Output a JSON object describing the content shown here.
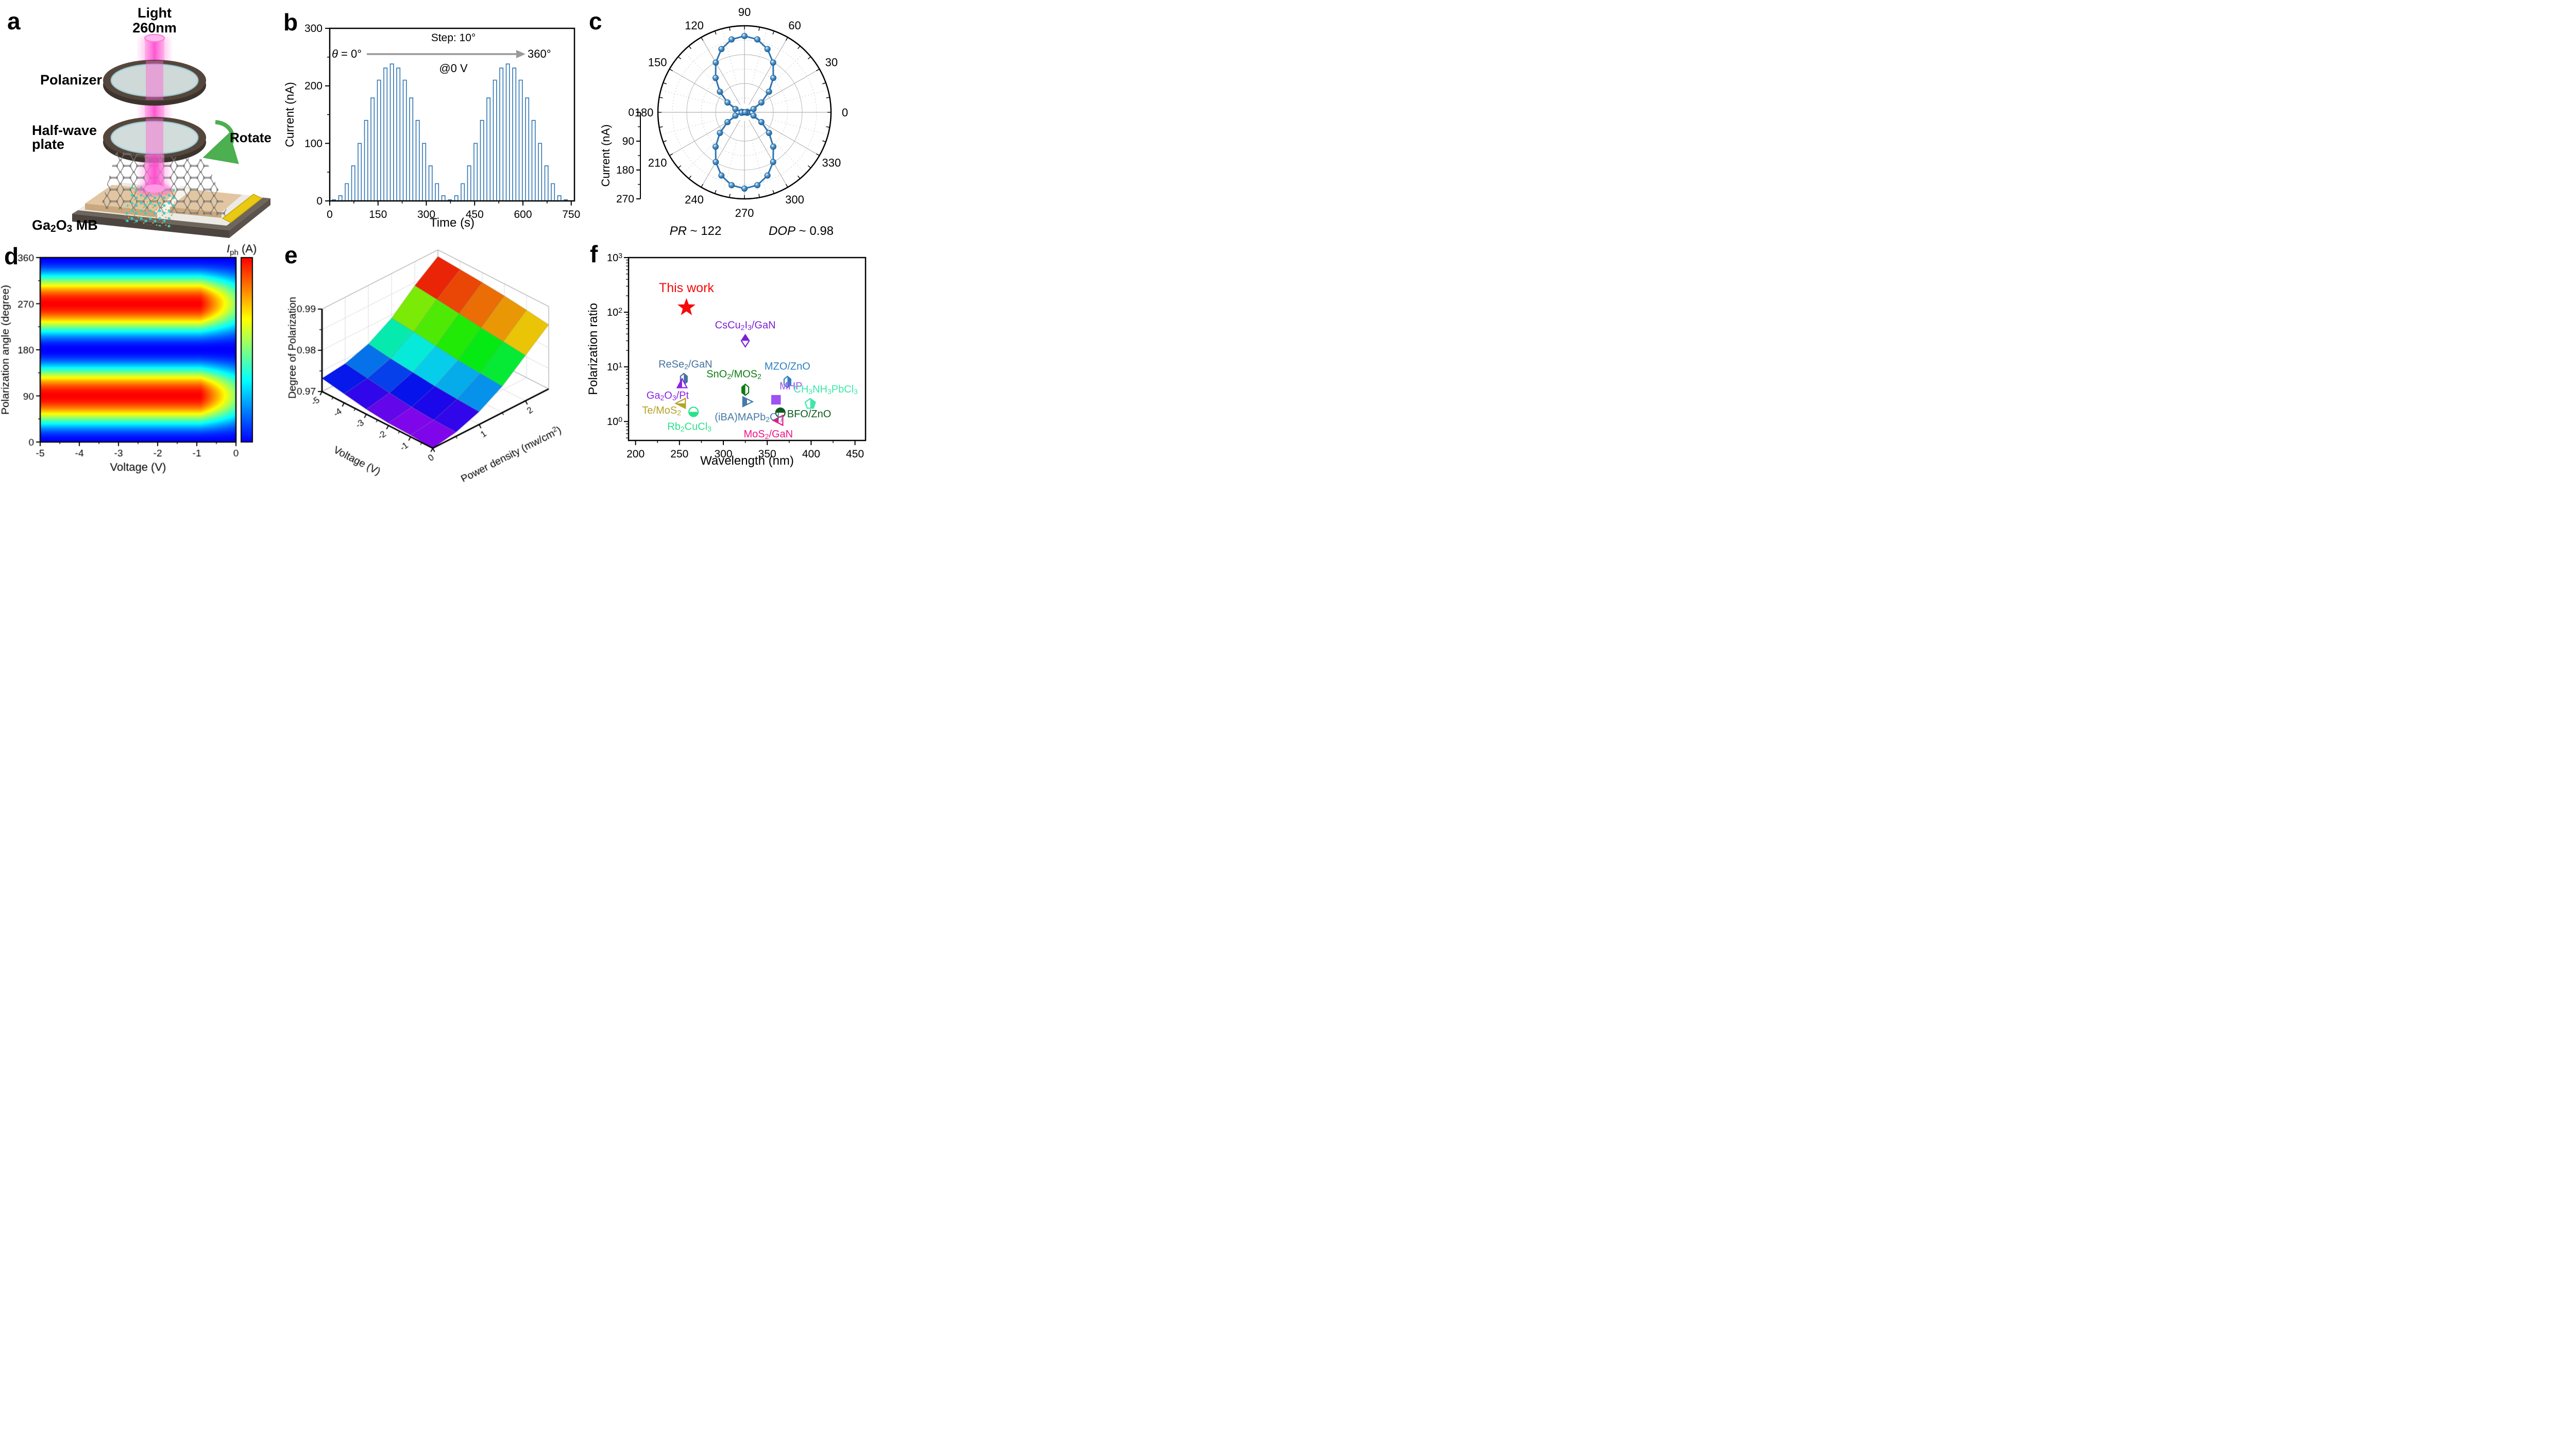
{
  "panel_a": {
    "label": "a",
    "light_label_line1": "Light",
    "light_label_line2": "260nm",
    "polarizer_label": "Polanizer",
    "halfwave_label_line1": "Half-wave",
    "halfwave_label_line2": "plate",
    "rotate_label": "Rotate",
    "device_label_segments": [
      [
        "Ga",
        0
      ],
      [
        "2",
        1
      ],
      [
        "O",
        0
      ],
      [
        "3",
        1
      ],
      [
        " MB",
        0
      ]
    ],
    "beam_color": "#FF63D4",
    "rotate_arrow_color": "#4CAF50",
    "gold_pad_color": "#E9C914"
  },
  "panel_b": {
    "label": "b",
    "xlabel": "Time (s)",
    "ylabel": "Current (nA)",
    "xticks": [
      0,
      150,
      300,
      450,
      600,
      750
    ],
    "yticks": [
      0,
      100,
      200,
      300
    ],
    "xlim": [
      0,
      760
    ],
    "ylim": [
      0,
      300
    ],
    "annotation_step": "Step: 10°",
    "annotation_theta_segments": [
      [
        "θ",
        2
      ],
      [
        " = 0°",
        0
      ]
    ],
    "annotation_end": "360°",
    "annotation_bias": "@0 V",
    "line_color": "#2E74B2",
    "arrow_color": "#9a9a9a",
    "chart_data": {
      "type": "pulse-line",
      "angle_step_deg": 10,
      "pulse_period_s": 20,
      "pulse_on_s": 10,
      "time_range_s": [
        0,
        750
      ],
      "pulse_heights_nA": [
        2,
        9,
        30,
        61,
        100,
        140,
        179,
        210,
        231,
        238,
        231,
        210,
        179,
        140,
        100,
        61,
        30,
        9,
        2,
        9,
        30,
        61,
        100,
        140,
        179,
        210,
        231,
        238,
        231,
        210,
        179,
        140,
        100,
        61,
        30,
        9,
        2
      ]
    }
  },
  "panel_c": {
    "label": "c",
    "angle_tick_labels": [
      0,
      30,
      60,
      90,
      120,
      150,
      180,
      210,
      240,
      270,
      300,
      330
    ],
    "radial_label": "Current (nA)",
    "radial_ticks": [
      0,
      90,
      180,
      270
    ],
    "r_max": 270,
    "marker_color": "#2E74B2",
    "pr_text_segments": [
      [
        "PR",
        2
      ],
      [
        " ~ 122",
        0
      ]
    ],
    "dop_text_segments": [
      [
        "DOP",
        2
      ],
      [
        " ~ 0.98",
        0
      ]
    ],
    "chart_data": {
      "type": "polar-line",
      "theta_step_deg": 10,
      "r_nA": [
        2,
        9,
        30,
        61,
        100,
        140,
        179,
        210,
        231,
        238,
        231,
        210,
        179,
        140,
        100,
        61,
        30,
        9,
        2,
        9,
        30,
        61,
        100,
        140,
        179,
        210,
        231,
        238,
        231,
        210,
        179,
        140,
        100,
        61,
        30,
        9,
        2
      ]
    }
  },
  "panel_d": {
    "label": "d",
    "xlabel": "Voltage (V)",
    "ylabel": "Polarization angle (degree)",
    "xticks": [
      -5,
      -4,
      -3,
      -2,
      -1,
      0
    ],
    "yticks": [
      0,
      90,
      180,
      270,
      360
    ],
    "colorbar_label_segments": [
      [
        "I",
        2
      ],
      [
        "ph",
        1
      ],
      [
        " (A)",
        0
      ]
    ],
    "chart_data": {
      "type": "heatmap",
      "x_range_V": [
        -5,
        0
      ],
      "y_range_deg": [
        0,
        360
      ],
      "model": "Iph ∝ sin²(θ)·A(V), A(V)=0.52+0.48·min(1,−V/0.9)",
      "hot_band_centers_deg": [
        90,
        270
      ],
      "cold_band_centers_deg": [
        0,
        180,
        360
      ],
      "colormap": "jet"
    }
  },
  "panel_e": {
    "label": "e",
    "zlabel": "Degree of Polarization",
    "zticks": [
      0.97,
      0.98,
      0.99
    ],
    "xlabel": "Voltage (V)",
    "xticks": [
      -5,
      -4,
      -3,
      -2,
      -1,
      0
    ],
    "ylabel_segments": [
      [
        "Power density (mw/cm",
        0
      ],
      [
        "2",
        3
      ],
      [
        ")",
        0
      ]
    ],
    "yticks": [
      0,
      1,
      2
    ],
    "chart_data": {
      "type": "surface3d",
      "voltage_V": [
        -5,
        -4,
        -3,
        -2,
        -1,
        0
      ],
      "power_mw_cm2": [
        0,
        0.5,
        1,
        1.5,
        2,
        2.5
      ],
      "zlim": [
        0.97,
        0.99
      ],
      "colormap": "rainbow purple(low)→red(high)",
      "dop_grid": [
        [
          0.9732,
          0.9722,
          0.9712,
          0.9706,
          0.9704,
          0.97
        ],
        [
          0.9739,
          0.9731,
          0.9723,
          0.9716,
          0.9712,
          0.971
        ],
        [
          0.9758,
          0.975,
          0.9744,
          0.9738,
          0.9734,
          0.9731
        ],
        [
          0.9792,
          0.9786,
          0.9779,
          0.9772,
          0.9768,
          0.9764
        ],
        [
          0.9842,
          0.9836,
          0.9829,
          0.9822,
          0.9816,
          0.981
        ],
        [
          0.9884,
          0.988,
          0.9876,
          0.9871,
          0.9864,
          0.9856
        ]
      ]
    }
  },
  "panel_f": {
    "label": "f",
    "xlabel": "Wavelength (nm)",
    "ylabel": "Polarization ratio",
    "xticks": [
      200,
      250,
      300,
      350,
      400,
      450
    ],
    "ytick_exponents": [
      0,
      1,
      2,
      3
    ],
    "xlim": [
      192,
      462
    ],
    "ylim_log": [
      0.45,
      1000
    ],
    "chart_data": {
      "type": "scatter-log",
      "points": [
        {
          "name": "this-work",
          "label_segments": [
            [
              "This work",
              0
            ]
          ],
          "x_nm": 258,
          "pr": 122,
          "color": "#F50A0A",
          "marker": "star",
          "fill": "full"
        },
        {
          "name": "cscu2i3-gan",
          "label_segments": [
            [
              "CsCu",
              0
            ],
            [
              "2",
              1
            ],
            [
              "I",
              0
            ],
            [
              "3",
              1
            ],
            [
              "/GaN",
              0
            ]
          ],
          "x_nm": 325,
          "pr": 30,
          "color": "#7A1FD6",
          "marker": "diamond",
          "fill": "top"
        },
        {
          "name": "rese2-gan",
          "label_segments": [
            [
              "ReSe",
              0
            ],
            [
              "2",
              1
            ],
            [
              "/GaN",
              0
            ]
          ],
          "x_nm": 255,
          "pr": 6.0,
          "color": "#44719F",
          "marker": "hexagon",
          "fill": "right"
        },
        {
          "name": "ga2o3-pt",
          "label_segments": [
            [
              "Ga",
              0
            ],
            [
              "2",
              1
            ],
            [
              "O",
              0
            ],
            [
              "3",
              1
            ],
            [
              "/Pt",
              0
            ]
          ],
          "x_nm": 253,
          "pr": 4.9,
          "color": "#8B22E8",
          "marker": "triangle-up",
          "fill": "left"
        },
        {
          "name": "mzo-zno",
          "label_segments": [
            [
              "MZO/ZnO",
              0
            ]
          ],
          "x_nm": 373,
          "pr": 5.3,
          "color": "#2E7FBF",
          "marker": "hexagon",
          "fill": "right"
        },
        {
          "name": "sno2-mos2",
          "label_segments": [
            [
              "SnO",
              0
            ],
            [
              "2",
              1
            ],
            [
              "/MOS",
              0
            ],
            [
              "2",
              1
            ]
          ],
          "x_nm": 325,
          "pr": 3.8,
          "color": "#0E7C12",
          "marker": "hexagon",
          "fill": "left"
        },
        {
          "name": "mhp",
          "label_segments": [
            [
              "MHP",
              0
            ]
          ],
          "x_nm": 360,
          "pr": 2.5,
          "color": "#9E52F0",
          "marker": "square",
          "fill": "full"
        },
        {
          "name": "iba-mapb2cl7",
          "label_segments": [
            [
              "(iBA)MAPb",
              0
            ],
            [
              "2",
              1
            ],
            [
              "Cl",
              0
            ],
            [
              "7",
              1
            ]
          ],
          "x_nm": 327,
          "pr": 2.3,
          "color": "#4779A9",
          "marker": "triangle-right",
          "fill": "left"
        },
        {
          "name": "ch3nh3pbcl3",
          "label_segments": [
            [
              "CH",
              0
            ],
            [
              "3",
              1
            ],
            [
              "NH",
              0
            ],
            [
              "3",
              1
            ],
            [
              "PbCl",
              0
            ],
            [
              "3",
              1
            ]
          ],
          "x_nm": 399,
          "pr": 2.1,
          "color": "#3BE9A9",
          "marker": "pentagon",
          "fill": "right"
        },
        {
          "name": "te-mos2",
          "label_segments": [
            [
              "Te/MoS",
              0
            ],
            [
              "2",
              1
            ]
          ],
          "x_nm": 252,
          "pr": 2.15,
          "color": "#B5A229",
          "marker": "triangle-left",
          "fill": "bottom"
        },
        {
          "name": "rb2cucl3",
          "label_segments": [
            [
              "Rb",
              0
            ],
            [
              "2",
              1
            ],
            [
              "CuCl",
              0
            ],
            [
              "3",
              1
            ]
          ],
          "x_nm": 266,
          "pr": 1.5,
          "color": "#2BE08C",
          "marker": "circle",
          "fill": "bottom"
        },
        {
          "name": "bfo-zno",
          "label_segments": [
            [
              "BFO/ZnO",
              0
            ]
          ],
          "x_nm": 365,
          "pr": 1.45,
          "color": "#0E5A1E",
          "marker": "circle",
          "fill": "top"
        },
        {
          "name": "mos2-gan",
          "label_segments": [
            [
              "MoS",
              0
            ],
            [
              "2",
              1
            ],
            [
              "/GaN",
              0
            ]
          ],
          "x_nm": 363,
          "pr": 1.05,
          "color": "#F01384",
          "marker": "triangle-left",
          "fill": "left"
        }
      ]
    }
  }
}
